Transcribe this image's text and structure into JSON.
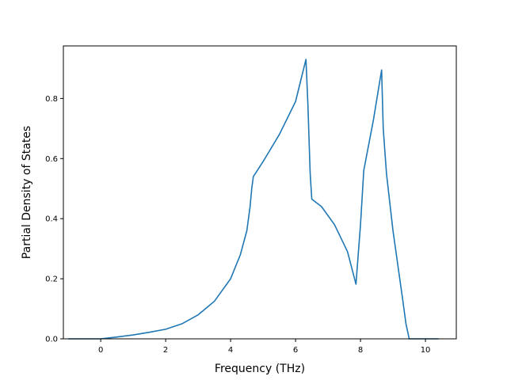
{
  "chart_data": {
    "type": "line",
    "title": "",
    "xlabel": "Frequency (THz)",
    "ylabel": "Partial Density of States",
    "xlim": [
      -1.15,
      10.95
    ],
    "ylim": [
      0.0,
      0.975
    ],
    "grid": false,
    "legend": "none",
    "x_ticks": [
      "0",
      "2",
      "4",
      "6",
      "8",
      "10"
    ],
    "y_ticks": [
      "0.0",
      "0.2",
      "0.4",
      "0.6",
      "0.8"
    ],
    "series": [
      {
        "color": "#1f77b4",
        "x": [
          -1.0,
          -0.5,
          0.0,
          0.5,
          1.0,
          1.5,
          2.0,
          2.5,
          3.0,
          3.5,
          4.0,
          4.3,
          4.5,
          4.6,
          4.65,
          4.7,
          5.0,
          5.5,
          6.0,
          6.32,
          6.38,
          6.45,
          6.5,
          6.8,
          7.2,
          7.6,
          7.86,
          8.0,
          8.1,
          8.4,
          8.65,
          8.7,
          8.8,
          9.0,
          9.3,
          9.4,
          9.5,
          10.0,
          10.4
        ],
        "y": [
          0.0,
          0.0,
          0.0,
          0.006,
          0.013,
          0.022,
          0.032,
          0.05,
          0.08,
          0.125,
          0.2,
          0.28,
          0.36,
          0.44,
          0.5,
          0.54,
          0.59,
          0.68,
          0.79,
          0.93,
          0.78,
          0.55,
          0.465,
          0.44,
          0.38,
          0.29,
          0.182,
          0.38,
          0.56,
          0.73,
          0.895,
          0.7,
          0.55,
          0.36,
          0.13,
          0.05,
          0.0,
          0.0,
          0.0
        ]
      }
    ]
  }
}
